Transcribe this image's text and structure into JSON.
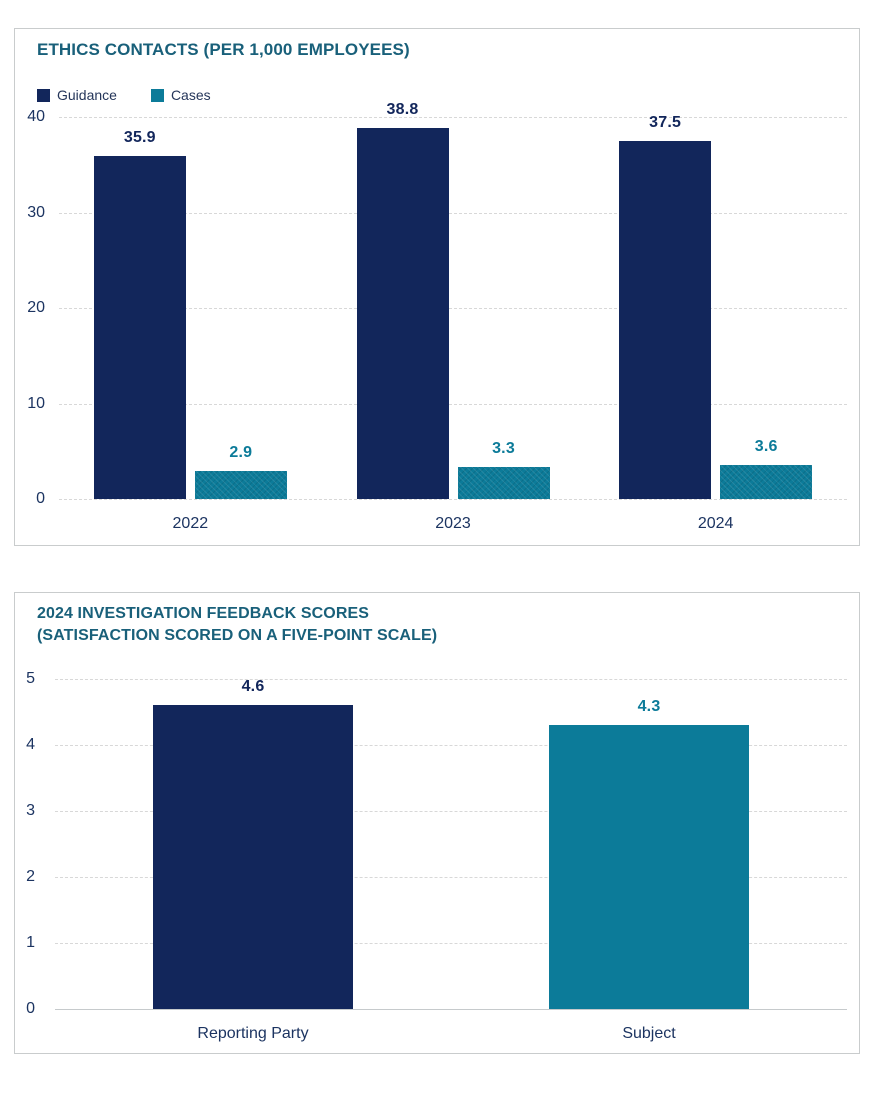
{
  "colors": {
    "navy": "#12265b",
    "teal": "#0c7b99",
    "title_teal": "#19607a",
    "axis_text": "#1c3461",
    "legend_text": "#25365a",
    "gridline": "#d8d8d8",
    "zero_line": "#c6cacc",
    "panel_border": "#c9cccd",
    "background": "#ffffff"
  },
  "chart_data": [
    {
      "type": "bar",
      "title": "ETHICS CONTACTS (PER 1,000 EMPLOYEES)",
      "categories": [
        "2022",
        "2023",
        "2024"
      ],
      "series": [
        {
          "name": "Guidance",
          "color_key": "navy",
          "hatch": false,
          "values": [
            35.9,
            38.8,
            37.5
          ]
        },
        {
          "name": "Cases",
          "color_key": "teal",
          "hatch": true,
          "values": [
            2.9,
            3.3,
            3.6
          ]
        }
      ],
      "data_labels": [
        [
          "35.9",
          "38.8",
          "37.5"
        ],
        [
          "2.9",
          "3.3",
          "3.6"
        ]
      ],
      "ylim": [
        0,
        40
      ],
      "yticks": [
        "0",
        "10",
        "20",
        "30",
        "40"
      ],
      "ytick_values": [
        0,
        10,
        20,
        30,
        40
      ],
      "grid": "horizontal-dashed",
      "legend_position": "top-left",
      "xlabel": "",
      "ylabel": ""
    },
    {
      "type": "bar",
      "title": "2024 INVESTIGATION FEEDBACK SCORES",
      "subtitle": "(SATISFACTION SCORED ON A FIVE-POINT SCALE)",
      "categories": [
        "Reporting Party",
        "Subject"
      ],
      "values": [
        4.6,
        4.3
      ],
      "bar_color_keys": [
        "navy",
        "teal"
      ],
      "data_labels": [
        "4.6",
        "4.3"
      ],
      "ylim": [
        0,
        5
      ],
      "yticks": [
        "0",
        "1",
        "2",
        "3",
        "4",
        "5"
      ],
      "ytick_values": [
        0,
        1,
        2,
        3,
        4,
        5
      ],
      "grid": "horizontal-dashed",
      "legend_position": "none",
      "xlabel": "",
      "ylabel": ""
    }
  ]
}
